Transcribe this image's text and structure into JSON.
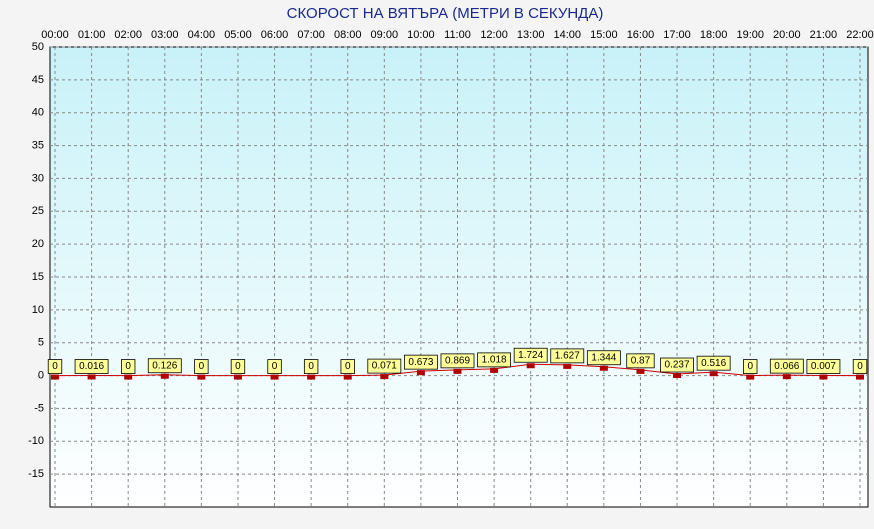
{
  "chart_data": {
    "type": "line",
    "title": "СКОРОСТ НА ВЯТЪРА (МЕТРИ В СЕКУНДА)",
    "categories": [
      "00:00",
      "01:00",
      "02:00",
      "03:00",
      "04:00",
      "05:00",
      "06:00",
      "07:00",
      "08:00",
      "09:00",
      "10:00",
      "11:00",
      "12:00",
      "13:00",
      "14:00",
      "15:00",
      "16:00",
      "17:00",
      "18:00",
      "19:00",
      "20:00",
      "21:00",
      "22:00"
    ],
    "series": [
      {
        "color": "#cc0000",
        "values": [
          0,
          0.016,
          0,
          0.126,
          0,
          0,
          0,
          0,
          0,
          0.071,
          0.673,
          0.869,
          1.018,
          1.724,
          1.627,
          1.344,
          0.87,
          0.237,
          0.516,
          0,
          0.066,
          0.007,
          0
        ]
      }
    ],
    "ylim": [
      -20,
      50
    ],
    "yticks": [
      50,
      45,
      40,
      35,
      30,
      25,
      20,
      15,
      10,
      5,
      0,
      -5,
      -10,
      -15
    ],
    "grid": true
  }
}
